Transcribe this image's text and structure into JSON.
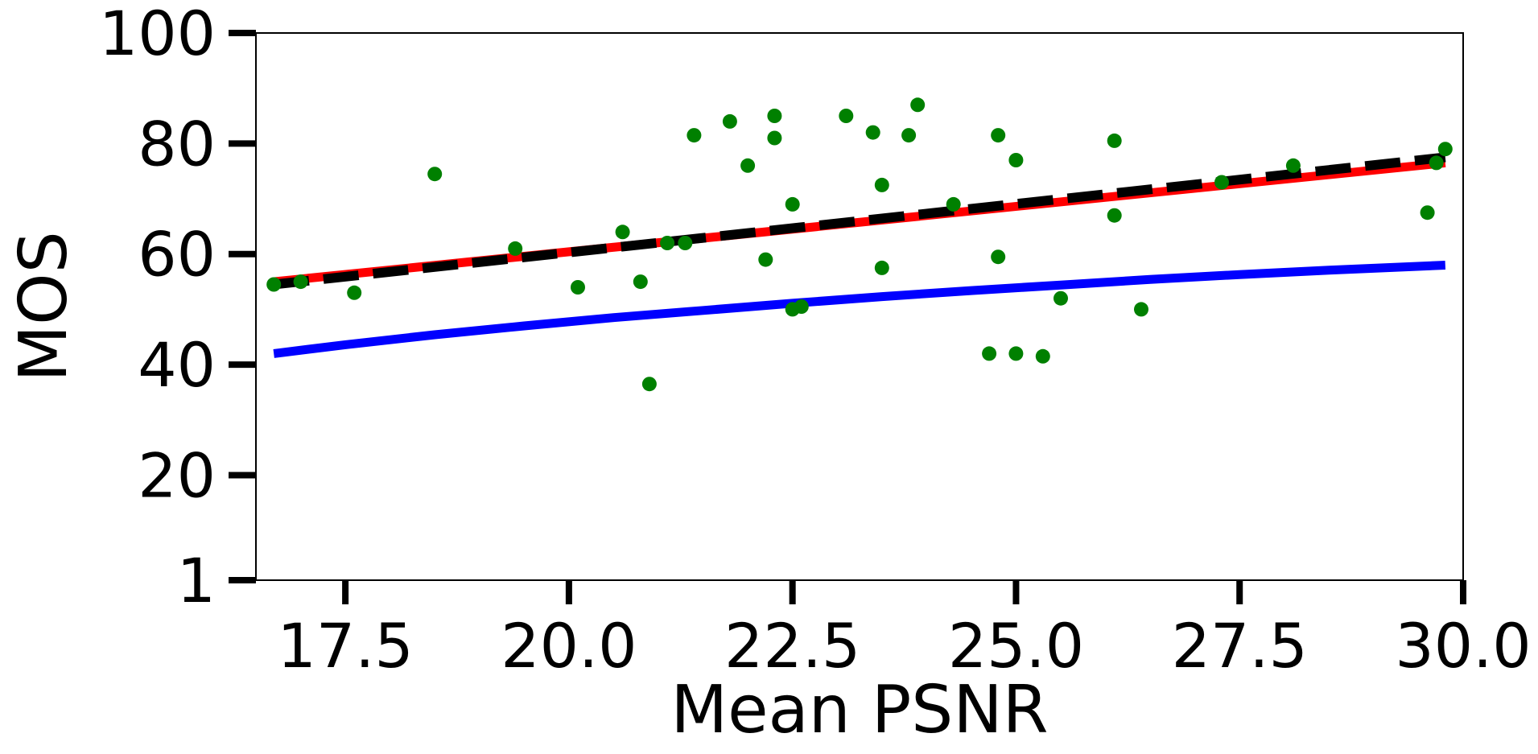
{
  "chart_data": {
    "type": "scatter",
    "title": "",
    "xlabel": "Mean PSNR",
    "ylabel": "MOS",
    "xlim": [
      16.5,
      30.0
    ],
    "ylim": [
      1,
      100
    ],
    "x_ticks": [
      17.5,
      20.0,
      22.5,
      25.0,
      27.5,
      30.0
    ],
    "x_tick_labels": [
      "17.5",
      "20.0",
      "22.5",
      "25.0",
      "27.5",
      "30.0"
    ],
    "y_ticks": [
      1,
      20,
      40,
      60,
      80,
      100
    ],
    "y_tick_labels": [
      "1",
      "20",
      "40",
      "60",
      "80",
      "100"
    ],
    "grid": false,
    "legend": "none",
    "points": {
      "color": "#008000",
      "x": [
        16.7,
        17.0,
        17.6,
        18.5,
        19.4,
        20.1,
        20.6,
        20.8,
        20.9,
        21.1,
        21.3,
        21.4,
        21.8,
        22.0,
        22.2,
        22.3,
        22.3,
        22.5,
        22.5,
        22.6,
        23.1,
        23.4,
        23.5,
        23.5,
        23.8,
        23.9,
        24.3,
        24.7,
        24.8,
        24.8,
        25.0,
        25.0,
        25.3,
        25.5,
        26.1,
        26.1,
        26.4,
        27.3,
        28.1,
        29.6,
        29.7,
        29.8
      ],
      "y": [
        54.5,
        55.0,
        53.0,
        74.5,
        61.0,
        54.0,
        64.0,
        55.0,
        36.5,
        62.0,
        62.0,
        81.5,
        84.0,
        76.0,
        59.0,
        85.0,
        81.0,
        69.0,
        50.0,
        50.5,
        85.0,
        82.0,
        57.5,
        72.5,
        81.5,
        87.0,
        69.0,
        42.0,
        81.5,
        59.5,
        42.0,
        77.0,
        41.5,
        52.0,
        67.0,
        80.5,
        50.0,
        73.0,
        76.0,
        67.5,
        76.5,
        79.0
      ]
    },
    "series": [
      {
        "style": "solid",
        "color": "#0000ff",
        "x": [
          16.7,
          17.5,
          18.5,
          19.5,
          20.5,
          21.5,
          22.5,
          23.5,
          24.5,
          25.5,
          26.5,
          27.5,
          28.5,
          29.8
        ],
        "y": [
          42.0,
          43.6,
          45.4,
          47.0,
          48.5,
          49.8,
          51.1,
          52.3,
          53.4,
          54.4,
          55.4,
          56.3,
          57.1,
          58.0
        ]
      },
      {
        "style": "solid",
        "color": "#ff0000",
        "x": [
          16.7,
          29.8
        ],
        "y": [
          55.0,
          76.5
        ]
      },
      {
        "style": "dashed",
        "color": "#000000",
        "x": [
          16.7,
          29.8
        ],
        "y": [
          54.5,
          77.5
        ]
      }
    ]
  }
}
